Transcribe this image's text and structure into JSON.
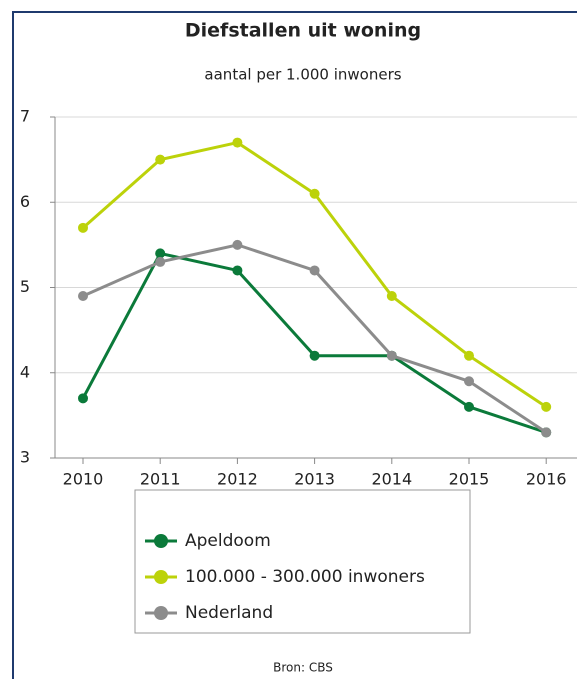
{
  "chart_data": {
    "type": "line",
    "title": "Diefstallen uit woning",
    "subtitle": "aantal per 1.000 inwoners",
    "categories": [
      "2010",
      "2011",
      "2012",
      "2013",
      "2014",
      "2015",
      "2016"
    ],
    "series": [
      {
        "name": "Apeldoom",
        "color": "#0b7a3a",
        "values": [
          3.7,
          5.4,
          5.2,
          4.2,
          4.2,
          3.6,
          3.3
        ]
      },
      {
        "name": "100.000 - 300.000 inwoners",
        "color": "#bcd20a",
        "values": [
          5.7,
          6.5,
          6.7,
          6.1,
          4.9,
          4.2,
          3.6
        ]
      },
      {
        "name": "Nederland",
        "color": "#8c8c8c",
        "values": [
          4.9,
          5.3,
          5.5,
          5.2,
          4.2,
          3.9,
          3.3
        ]
      }
    ],
    "ylim": [
      3,
      7
    ],
    "yticks": [
      3,
      4,
      5,
      6,
      7
    ],
    "grid": true,
    "source": "Bron: CBS"
  }
}
